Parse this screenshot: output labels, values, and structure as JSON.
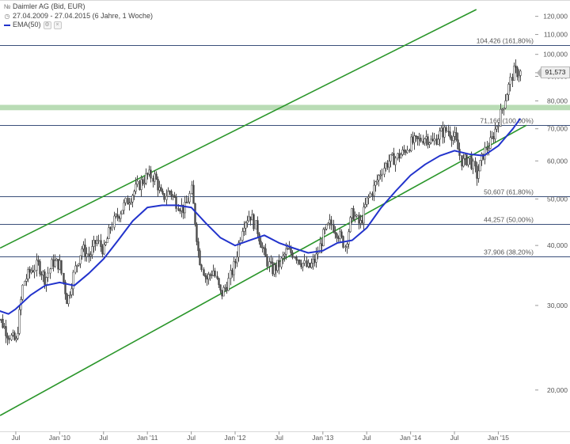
{
  "legend": {
    "title": "Daimler AG (Bid, EUR)",
    "period": "27.04.2009 - 27.04.2015 (6 Jahre, 1 Woche)",
    "indicator": "EMA(50)"
  },
  "chart_data": {
    "type": "candlestick",
    "yscale": "log",
    "ylim": [
      17.5,
      124
    ],
    "y_ticks": [
      {
        "value": 20,
        "label": "20,000"
      },
      {
        "value": 30,
        "label": "30,000"
      },
      {
        "value": 40,
        "label": "40,000"
      },
      {
        "value": 50,
        "label": "50,000"
      },
      {
        "value": 60,
        "label": "60,000"
      },
      {
        "value": 70,
        "label": "70,000"
      },
      {
        "value": 80,
        "label": "80,000"
      },
      {
        "value": 90,
        "label": "90,000"
      },
      {
        "value": 100,
        "label": "100,000"
      },
      {
        "value": 110,
        "label": "110,000"
      },
      {
        "value": 120,
        "label": "120,000"
      }
    ],
    "x_ticks": [
      "Jul",
      "Jan '10",
      "Jul",
      "Jan '11",
      "Jul",
      "Jan '12",
      "Jul",
      "Jan '13",
      "Jul",
      "Jan '14",
      "Jul",
      "Jan '15"
    ],
    "current_price": {
      "value": 91.573,
      "label": "91,573"
    },
    "fib_levels": [
      {
        "value": 104.426,
        "label": "104,426 (161,80%)"
      },
      {
        "value": 71.166,
        "label": "71,166 (100,00%)"
      },
      {
        "value": 50.607,
        "label": "50,607 (61,80%)"
      },
      {
        "value": 44.257,
        "label": "44,257 (50,00%)"
      },
      {
        "value": 37.906,
        "label": "37,906 (38,20%)"
      }
    ],
    "support_zone": [
      76.5,
      78.5
    ],
    "channel_lines": [
      {
        "name": "upper",
        "start": {
          "x": "2009-04-27",
          "y": 39.5
        },
        "end": {
          "x": "2014-10-01",
          "y": 124
        }
      },
      {
        "name": "lower",
        "start": {
          "x": "2009-04-27",
          "y": 17.7
        },
        "end": {
          "x": "2015-04-27",
          "y": 71.2
        }
      }
    ],
    "price_path": [
      {
        "x": "2009-04",
        "y": 29.5
      },
      {
        "x": "2009-06",
        "y": 26.0
      },
      {
        "x": "2009-07",
        "y": 25.2
      },
      {
        "x": "2009-08",
        "y": 33.5
      },
      {
        "x": "2009-09",
        "y": 35.5
      },
      {
        "x": "2009-10",
        "y": 36.5
      },
      {
        "x": "2009-11",
        "y": 34.0
      },
      {
        "x": "2009-12",
        "y": 37.0
      },
      {
        "x": "2010-01",
        "y": 36.5
      },
      {
        "x": "2010-02",
        "y": 30.5
      },
      {
        "x": "2010-03",
        "y": 35.5
      },
      {
        "x": "2010-04",
        "y": 39.5
      },
      {
        "x": "2010-05",
        "y": 38.0
      },
      {
        "x": "2010-06",
        "y": 41.0
      },
      {
        "x": "2010-07",
        "y": 39.0
      },
      {
        "x": "2010-08",
        "y": 44.0
      },
      {
        "x": "2010-09",
        "y": 46.5
      },
      {
        "x": "2010-10",
        "y": 49.0
      },
      {
        "x": "2010-11",
        "y": 51.5
      },
      {
        "x": "2010-12",
        "y": 54.0
      },
      {
        "x": "2011-01",
        "y": 56.0
      },
      {
        "x": "2011-02",
        "y": 55.5
      },
      {
        "x": "2011-03",
        "y": 50.0
      },
      {
        "x": "2011-04",
        "y": 52.0
      },
      {
        "x": "2011-05",
        "y": 49.0
      },
      {
        "x": "2011-06",
        "y": 47.5
      },
      {
        "x": "2011-07",
        "y": 52.0
      },
      {
        "x": "2011-08",
        "y": 38.0
      },
      {
        "x": "2011-09",
        "y": 34.0
      },
      {
        "x": "2011-10",
        "y": 35.5
      },
      {
        "x": "2011-11",
        "y": 31.5
      },
      {
        "x": "2011-12",
        "y": 33.5
      },
      {
        "x": "2012-01",
        "y": 37.0
      },
      {
        "x": "2012-02",
        "y": 44.5
      },
      {
        "x": "2012-03",
        "y": 46.5
      },
      {
        "x": "2012-04",
        "y": 43.0
      },
      {
        "x": "2012-05",
        "y": 38.0
      },
      {
        "x": "2012-06",
        "y": 35.5
      },
      {
        "x": "2012-07",
        "y": 36.5
      },
      {
        "x": "2012-08",
        "y": 39.0
      },
      {
        "x": "2012-09",
        "y": 38.5
      },
      {
        "x": "2012-10",
        "y": 37.0
      },
      {
        "x": "2012-11",
        "y": 35.8
      },
      {
        "x": "2012-12",
        "y": 37.5
      },
      {
        "x": "2013-01",
        "y": 42.0
      },
      {
        "x": "2013-02",
        "y": 44.5
      },
      {
        "x": "2013-03",
        "y": 42.5
      },
      {
        "x": "2013-04",
        "y": 40.0
      },
      {
        "x": "2013-05",
        "y": 47.0
      },
      {
        "x": "2013-06",
        "y": 44.0
      },
      {
        "x": "2013-07",
        "y": 49.5
      },
      {
        "x": "2013-08",
        "y": 53.0
      },
      {
        "x": "2013-09",
        "y": 57.5
      },
      {
        "x": "2013-10",
        "y": 60.0
      },
      {
        "x": "2013-11",
        "y": 61.0
      },
      {
        "x": "2013-12",
        "y": 62.5
      },
      {
        "x": "2014-01",
        "y": 65.5
      },
      {
        "x": "2014-02",
        "y": 66.0
      },
      {
        "x": "2014-03",
        "y": 67.5
      },
      {
        "x": "2014-04",
        "y": 65.5
      },
      {
        "x": "2014-05",
        "y": 68.5
      },
      {
        "x": "2014-06",
        "y": 69.5
      },
      {
        "x": "2014-07",
        "y": 67.0
      },
      {
        "x": "2014-08",
        "y": 59.5
      },
      {
        "x": "2014-09",
        "y": 61.0
      },
      {
        "x": "2014-10",
        "y": 56.0
      },
      {
        "x": "2014-11",
        "y": 62.5
      },
      {
        "x": "2014-12",
        "y": 66.0
      },
      {
        "x": "2015-01",
        "y": 73.0
      },
      {
        "x": "2015-02",
        "y": 82.0
      },
      {
        "x": "2015-03",
        "y": 92.0
      },
      {
        "x": "2015-04",
        "y": 91.57
      }
    ],
    "ema50_path": [
      {
        "x": "2009-04",
        "y": 29.5
      },
      {
        "x": "2009-06",
        "y": 28.8
      },
      {
        "x": "2009-07",
        "y": 29.5
      },
      {
        "x": "2009-09",
        "y": 31.5
      },
      {
        "x": "2009-11",
        "y": 33.0
      },
      {
        "x": "2010-01",
        "y": 33.5
      },
      {
        "x": "2010-03",
        "y": 33.0
      },
      {
        "x": "2010-05",
        "y": 35.0
      },
      {
        "x": "2010-07",
        "y": 37.5
      },
      {
        "x": "2010-09",
        "y": 41.0
      },
      {
        "x": "2010-11",
        "y": 45.0
      },
      {
        "x": "2011-01",
        "y": 48.0
      },
      {
        "x": "2011-03",
        "y": 48.5
      },
      {
        "x": "2011-05",
        "y": 48.5
      },
      {
        "x": "2011-07",
        "y": 48.0
      },
      {
        "x": "2011-09",
        "y": 44.5
      },
      {
        "x": "2011-11",
        "y": 41.5
      },
      {
        "x": "2012-01",
        "y": 40.0
      },
      {
        "x": "2012-03",
        "y": 41.0
      },
      {
        "x": "2012-05",
        "y": 42.0
      },
      {
        "x": "2012-07",
        "y": 40.5
      },
      {
        "x": "2012-09",
        "y": 39.5
      },
      {
        "x": "2012-11",
        "y": 38.6
      },
      {
        "x": "2013-01",
        "y": 39.0
      },
      {
        "x": "2013-03",
        "y": 40.5
      },
      {
        "x": "2013-05",
        "y": 41.0
      },
      {
        "x": "2013-07",
        "y": 43.5
      },
      {
        "x": "2013-09",
        "y": 48.0
      },
      {
        "x": "2013-11",
        "y": 52.0
      },
      {
        "x": "2014-01",
        "y": 56.0
      },
      {
        "x": "2014-03",
        "y": 59.0
      },
      {
        "x": "2014-05",
        "y": 61.5
      },
      {
        "x": "2014-07",
        "y": 63.0
      },
      {
        "x": "2014-09",
        "y": 62.0
      },
      {
        "x": "2014-11",
        "y": 61.5
      },
      {
        "x": "2015-01",
        "y": 64.5
      },
      {
        "x": "2015-03",
        "y": 70.0
      },
      {
        "x": "2015-04",
        "y": 73.5
      }
    ],
    "colors": {
      "candles": "#4a4a4a",
      "ema": "#2233cc",
      "channel": "#2a962a",
      "fib": "#3a4f7a",
      "support_zone": "#b9dcb5",
      "axis_text": "#555555",
      "fib_text": "#555555"
    }
  }
}
